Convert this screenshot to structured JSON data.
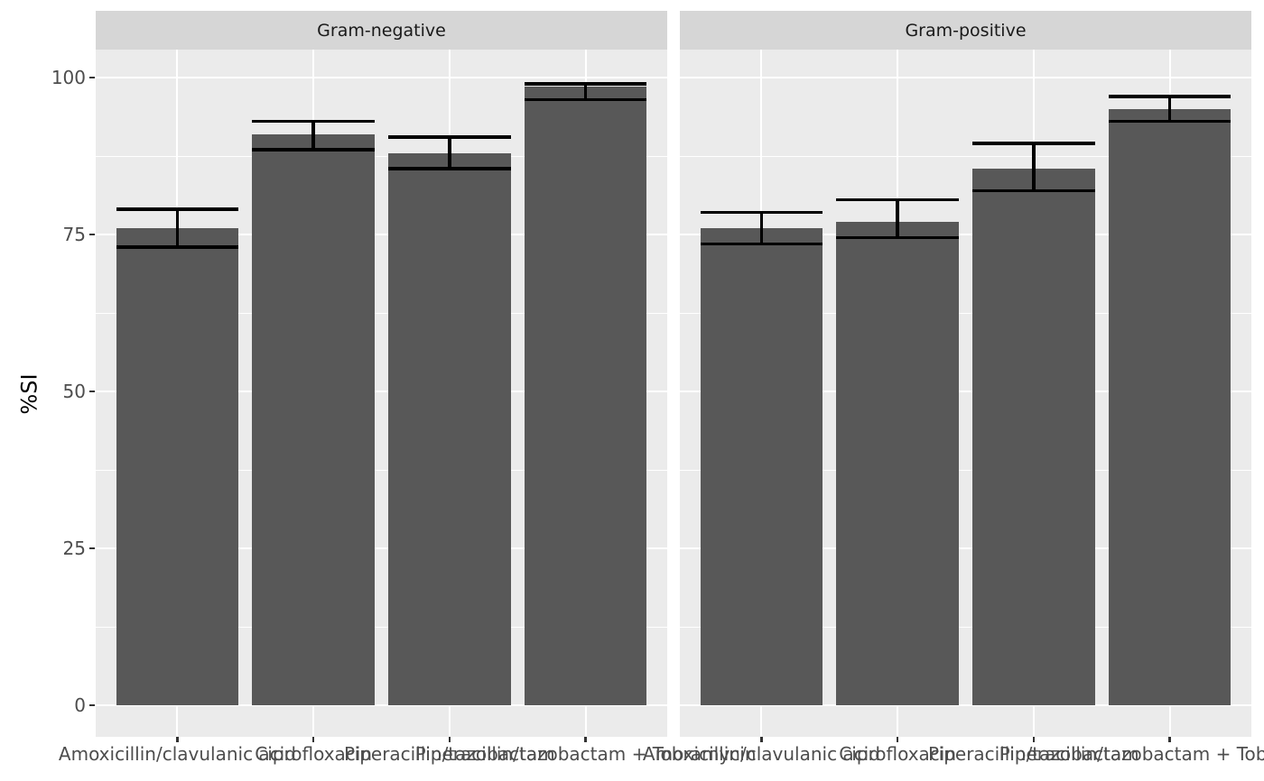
{
  "chart_data": {
    "type": "bar",
    "title": "",
    "xlabel": "",
    "ylabel": "%SI",
    "ylim": [
      0,
      100
    ],
    "yticks": [
      0,
      25,
      50,
      75,
      100
    ],
    "yticks_minor": [
      12.5,
      37.5,
      62.5,
      87.5
    ],
    "grid": true,
    "legend": "none",
    "error_bars": true,
    "categories": [
      "Amoxicillin/clavulanic acid",
      "Ciprofloxacin",
      "Piperacillin/tazobactam",
      "Piperacillin/tazobactam + Tobramycin"
    ],
    "facets": [
      {
        "label": "Gram-negative",
        "values": [
          76,
          91,
          88,
          98.5
        ],
        "ci_low": [
          73,
          88.5,
          85.5,
          96.5
        ],
        "ci_high": [
          79,
          93,
          90.5,
          99
        ]
      },
      {
        "label": "Gram-positive",
        "values": [
          76,
          77,
          85.5,
          95
        ],
        "ci_low": [
          73.5,
          74.5,
          82,
          93
        ],
        "ci_high": [
          78.5,
          80.5,
          89.5,
          97
        ]
      }
    ]
  },
  "colors": {
    "bar_fill": "#585858",
    "panel_background": "#ebebeb",
    "strip_background": "#d6d6d6",
    "strip_text": "#1a1a1a",
    "axis_text": "#4d4d4d",
    "axis_title": "#000000",
    "gridline": "#ffffff",
    "error_bar": "#000000",
    "tick_mark": "#333333",
    "figure_background": "#ffffff"
  }
}
